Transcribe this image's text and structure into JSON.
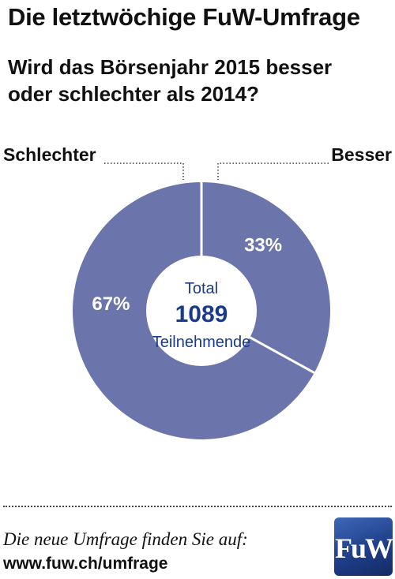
{
  "header": {
    "title": "Die letztwöchige FuW-Umfrage",
    "subtitle_line1": "Wird das Börsenjahr 2015 besser",
    "subtitle_line2": "oder schlechter als 2014?"
  },
  "chart_data": {
    "type": "pie",
    "donut": true,
    "slices": [
      {
        "name": "Besser",
        "value": 33,
        "label": "33%"
      },
      {
        "name": "Schlechter",
        "value": 67,
        "label": "67%"
      }
    ],
    "center": {
      "top": "Total",
      "value": "1089",
      "bottom": "Teilnehmende"
    },
    "colors": {
      "slice": "#6b74ab",
      "separator": "#ffffff",
      "center_text": "#1a3a8c"
    }
  },
  "footer": {
    "text": "Die neue Umfrage finden Sie auf:",
    "url": "www.fuw.ch/umfrage",
    "logo_text": "FuW"
  }
}
